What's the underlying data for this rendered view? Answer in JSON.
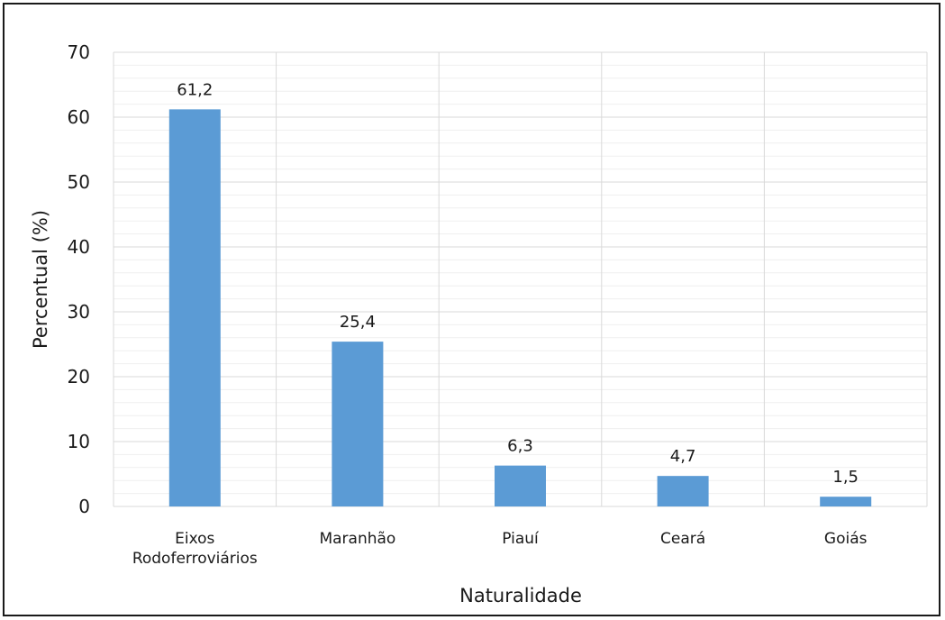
{
  "chart_data": {
    "type": "bar",
    "categories": [
      "Eixos Rodoferroviários",
      "Maranhão",
      "Piauí",
      "Ceará",
      "Goiás"
    ],
    "category_lines": [
      [
        "Eixos",
        "Rodoferroviários"
      ],
      [
        "Maranhão"
      ],
      [
        "Piauí"
      ],
      [
        "Ceará"
      ],
      [
        "Goiás"
      ]
    ],
    "values": [
      61.2,
      25.4,
      6.3,
      4.7,
      1.5
    ],
    "data_labels": [
      "61,2",
      "25,4",
      "6,3",
      "4,7",
      "1,5"
    ],
    "title": "",
    "xlabel": "Naturalidade",
    "ylabel": "Percentual (%)",
    "ylim": [
      0,
      70
    ],
    "yticks": [
      0,
      10,
      20,
      30,
      40,
      50,
      60,
      70
    ],
    "grid": true,
    "minor_grid": true,
    "legend": "none"
  },
  "colors": {
    "bar": "#5b9bd5",
    "major_grid": "#d9d9d9",
    "minor_grid": "#efefef",
    "text": "#1a1a1a"
  }
}
